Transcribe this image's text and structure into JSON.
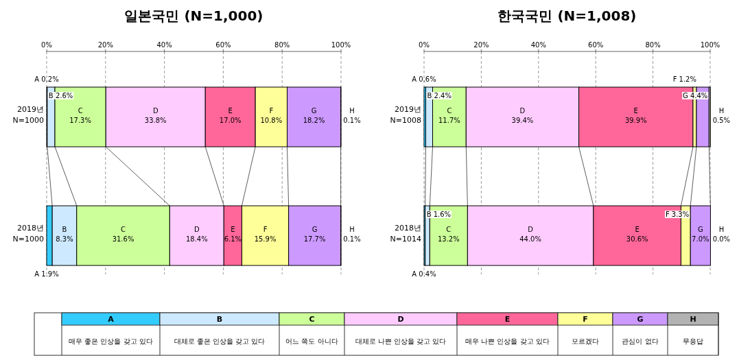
{
  "chart_data": [
    {
      "type": "bar",
      "orientation": "horizontal",
      "stacked": true,
      "title": "일본국민 (N=1,000)",
      "categories": [
        "2019년\nN=1000",
        "2018년\nN=1000"
      ],
      "xlim": [
        0,
        100
      ],
      "xticks": [
        {
          "value": 0,
          "label": "0%"
        },
        {
          "value": 20,
          "label": "20%"
        },
        {
          "value": 40,
          "label": "40%"
        },
        {
          "value": 60,
          "label": "60%"
        },
        {
          "value": 80,
          "label": "80%"
        },
        {
          "value": 100,
          "label": "100%"
        }
      ],
      "grid": "x",
      "legend": "bottom",
      "tick_labels": "x",
      "annotations": [
        "매우 좋은 인상을 갖고 있다",
        "대체로 좋은 인상을 갖고 있다",
        "어느 쪽도 아니다",
        "대체로 나쁜 인상을 갖고 있다",
        "매우 나쁜 인상을 갖고 있다",
        "모르겠다",
        "관심이 없다",
        "무응답"
      ],
      "series": [
        {
          "name": "A",
          "color": "#33ccff",
          "values": [
            0.2,
            1.9
          ],
          "value_labels": [
            "0.2%",
            "1.9%"
          ]
        },
        {
          "name": "B",
          "color": "#cce9ff",
          "values": [
            2.6,
            8.3
          ],
          "value_labels": [
            "2.6%",
            "8.3%"
          ]
        },
        {
          "name": "C",
          "color": "#ccff99",
          "values": [
            17.3,
            31.6
          ],
          "value_labels": [
            "17.3%",
            "31.6%"
          ]
        },
        {
          "name": "D",
          "color": "#ffccff",
          "values": [
            33.8,
            18.4
          ],
          "value_labels": [
            "33.8%",
            "18.4%"
          ]
        },
        {
          "name": "E",
          "color": "#ff6699",
          "values": [
            17.0,
            6.1
          ],
          "value_labels": [
            "17.0%",
            "6.1%"
          ]
        },
        {
          "name": "F",
          "color": "#ffff99",
          "values": [
            10.8,
            15.9
          ],
          "value_labels": [
            "10.8%",
            "15.9%"
          ]
        },
        {
          "name": "G",
          "color": "#cc99ff",
          "values": [
            18.2,
            17.7
          ],
          "value_labels": [
            "18.2%",
            "17.7%"
          ]
        },
        {
          "name": "H",
          "color": "#b2b2b2",
          "values": [
            0.1,
            0.1
          ],
          "value_labels": [
            "0.1%",
            "0.1%"
          ]
        }
      ]
    },
    {
      "type": "bar",
      "orientation": "horizontal",
      "stacked": true,
      "title": "한국국민 (N=1,008)",
      "categories": [
        "2019년\nN=1008",
        "2018년\nN=1014"
      ],
      "xlim": [
        0,
        100
      ],
      "xticks": [
        {
          "value": 0,
          "label": "0%"
        },
        {
          "value": 20,
          "label": "20%"
        },
        {
          "value": 40,
          "label": "40%"
        },
        {
          "value": 60,
          "label": "60%"
        },
        {
          "value": 80,
          "label": "80%"
        },
        {
          "value": 100,
          "label": "100%"
        }
      ],
      "grid": "x",
      "tick_labels": "x",
      "series": [
        {
          "name": "A",
          "color": "#33ccff",
          "values": [
            0.6,
            0.4
          ],
          "value_labels": [
            "0.6%",
            "0.4%"
          ]
        },
        {
          "name": "B",
          "color": "#cce9ff",
          "values": [
            2.4,
            1.6
          ],
          "value_labels": [
            "2.4%",
            "1.6%"
          ]
        },
        {
          "name": "C",
          "color": "#ccff99",
          "values": [
            11.7,
            13.2
          ],
          "value_labels": [
            "11.7%",
            "13.2%"
          ]
        },
        {
          "name": "D",
          "color": "#ffccff",
          "values": [
            39.4,
            44.0
          ],
          "value_labels": [
            "39.4%",
            "44.0%"
          ]
        },
        {
          "name": "E",
          "color": "#ff6699",
          "values": [
            39.9,
            30.6
          ],
          "value_labels": [
            "39.9%",
            "30.6%"
          ]
        },
        {
          "name": "F",
          "color": "#ffff99",
          "values": [
            1.2,
            3.3
          ],
          "value_labels": [
            "1.2%",
            "3.3%"
          ]
        },
        {
          "name": "G",
          "color": "#cc99ff",
          "values": [
            4.4,
            7.0
          ],
          "value_labels": [
            "4.4%",
            "7.0%"
          ]
        },
        {
          "name": "H",
          "color": "#b2b2b2",
          "values": [
            0.5,
            0.0
          ],
          "value_labels": [
            "0.5%",
            "0.0%"
          ]
        }
      ]
    }
  ]
}
